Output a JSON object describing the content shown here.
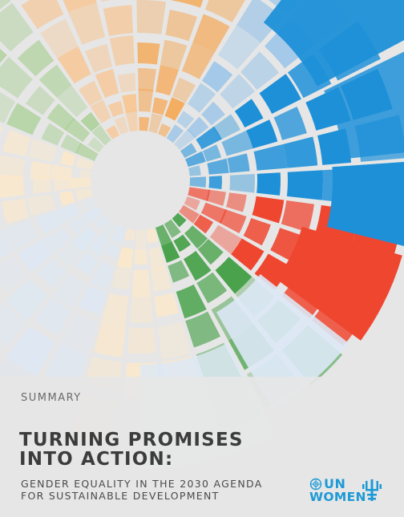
{
  "cover": {
    "label": "SUMMARY",
    "title_lines": [
      "TURNING PROMISES",
      "INTO ACTION:"
    ],
    "subtitle_lines": [
      "GENDER EQUALITY IN THE 2030 AGENDA",
      "FOR SUSTAINABLE DEVELOPMENT"
    ]
  },
  "logo": {
    "line1": "UN",
    "line2": "WOMEN",
    "color": "#1d9ad6",
    "emblem_icon": "un-emblem-icon",
    "tree_icon": "stylized-tree-icon"
  },
  "palette": {
    "background": "#e6e6e6",
    "blue": "#1e90d8",
    "orange": "#f6a34a",
    "red": "#ef4630",
    "green": "#4aa24c",
    "cream": "#fde8c8",
    "pale_blue": "#dce8f5"
  }
}
